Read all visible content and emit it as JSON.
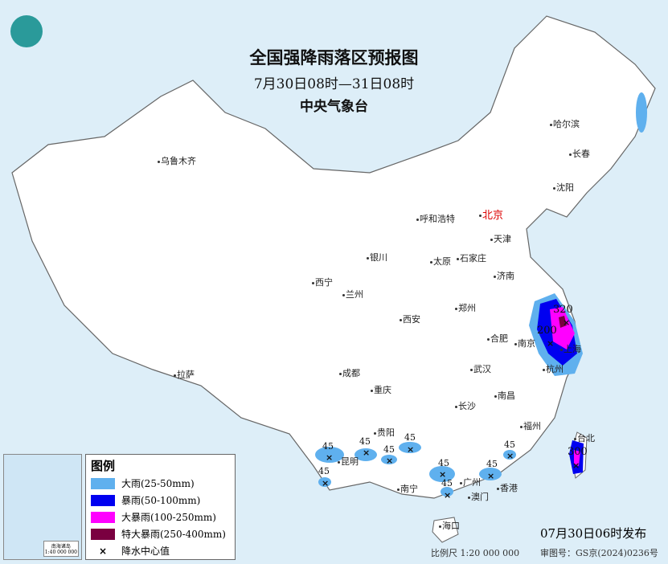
{
  "header": {
    "title": "全国强降雨落区预报图",
    "period": "7月30日08时—31日08时",
    "agency": "中央气象台"
  },
  "cities": [
    "乌鲁木齐",
    "哈尔滨",
    "长春",
    "沈阳",
    "呼和浩特",
    "北京",
    "天津",
    "银川",
    "太原",
    "石家庄",
    "西宁",
    "兰州",
    "济南",
    "郑州",
    "西安",
    "合肥",
    "南京",
    "上海",
    "杭州",
    "武汉",
    "成都",
    "重庆",
    "南昌",
    "长沙",
    "拉萨",
    "贵阳",
    "福州",
    "台北",
    "昆明",
    "南宁",
    "广州",
    "澳门",
    "香港",
    "海口"
  ],
  "rain_values": [
    "45",
    "45",
    "45",
    "45",
    "45",
    "45",
    "45",
    "45",
    "45",
    "320",
    "200",
    "300"
  ],
  "legend": {
    "title": "图例",
    "items": [
      {
        "label": "大雨(25-50mm)",
        "color": "#5fb0ee"
      },
      {
        "label": "暴雨(50-100mm)",
        "color": "#0000f0"
      },
      {
        "label": "大暴雨(100-250mm)",
        "color": "#ff00ff"
      },
      {
        "label": "特大暴雨(250-400mm)",
        "color": "#7a0040"
      },
      {
        "label": "降水中心值",
        "symbol": "×"
      }
    ]
  },
  "inset": {
    "title": "南海诸岛",
    "scale": "1:40 000 000"
  },
  "footer": {
    "issued": "07月30日06时发布",
    "scale": "比例尺 1:20 000 000",
    "map_no": "审图号：GS京(2024)0236号"
  }
}
